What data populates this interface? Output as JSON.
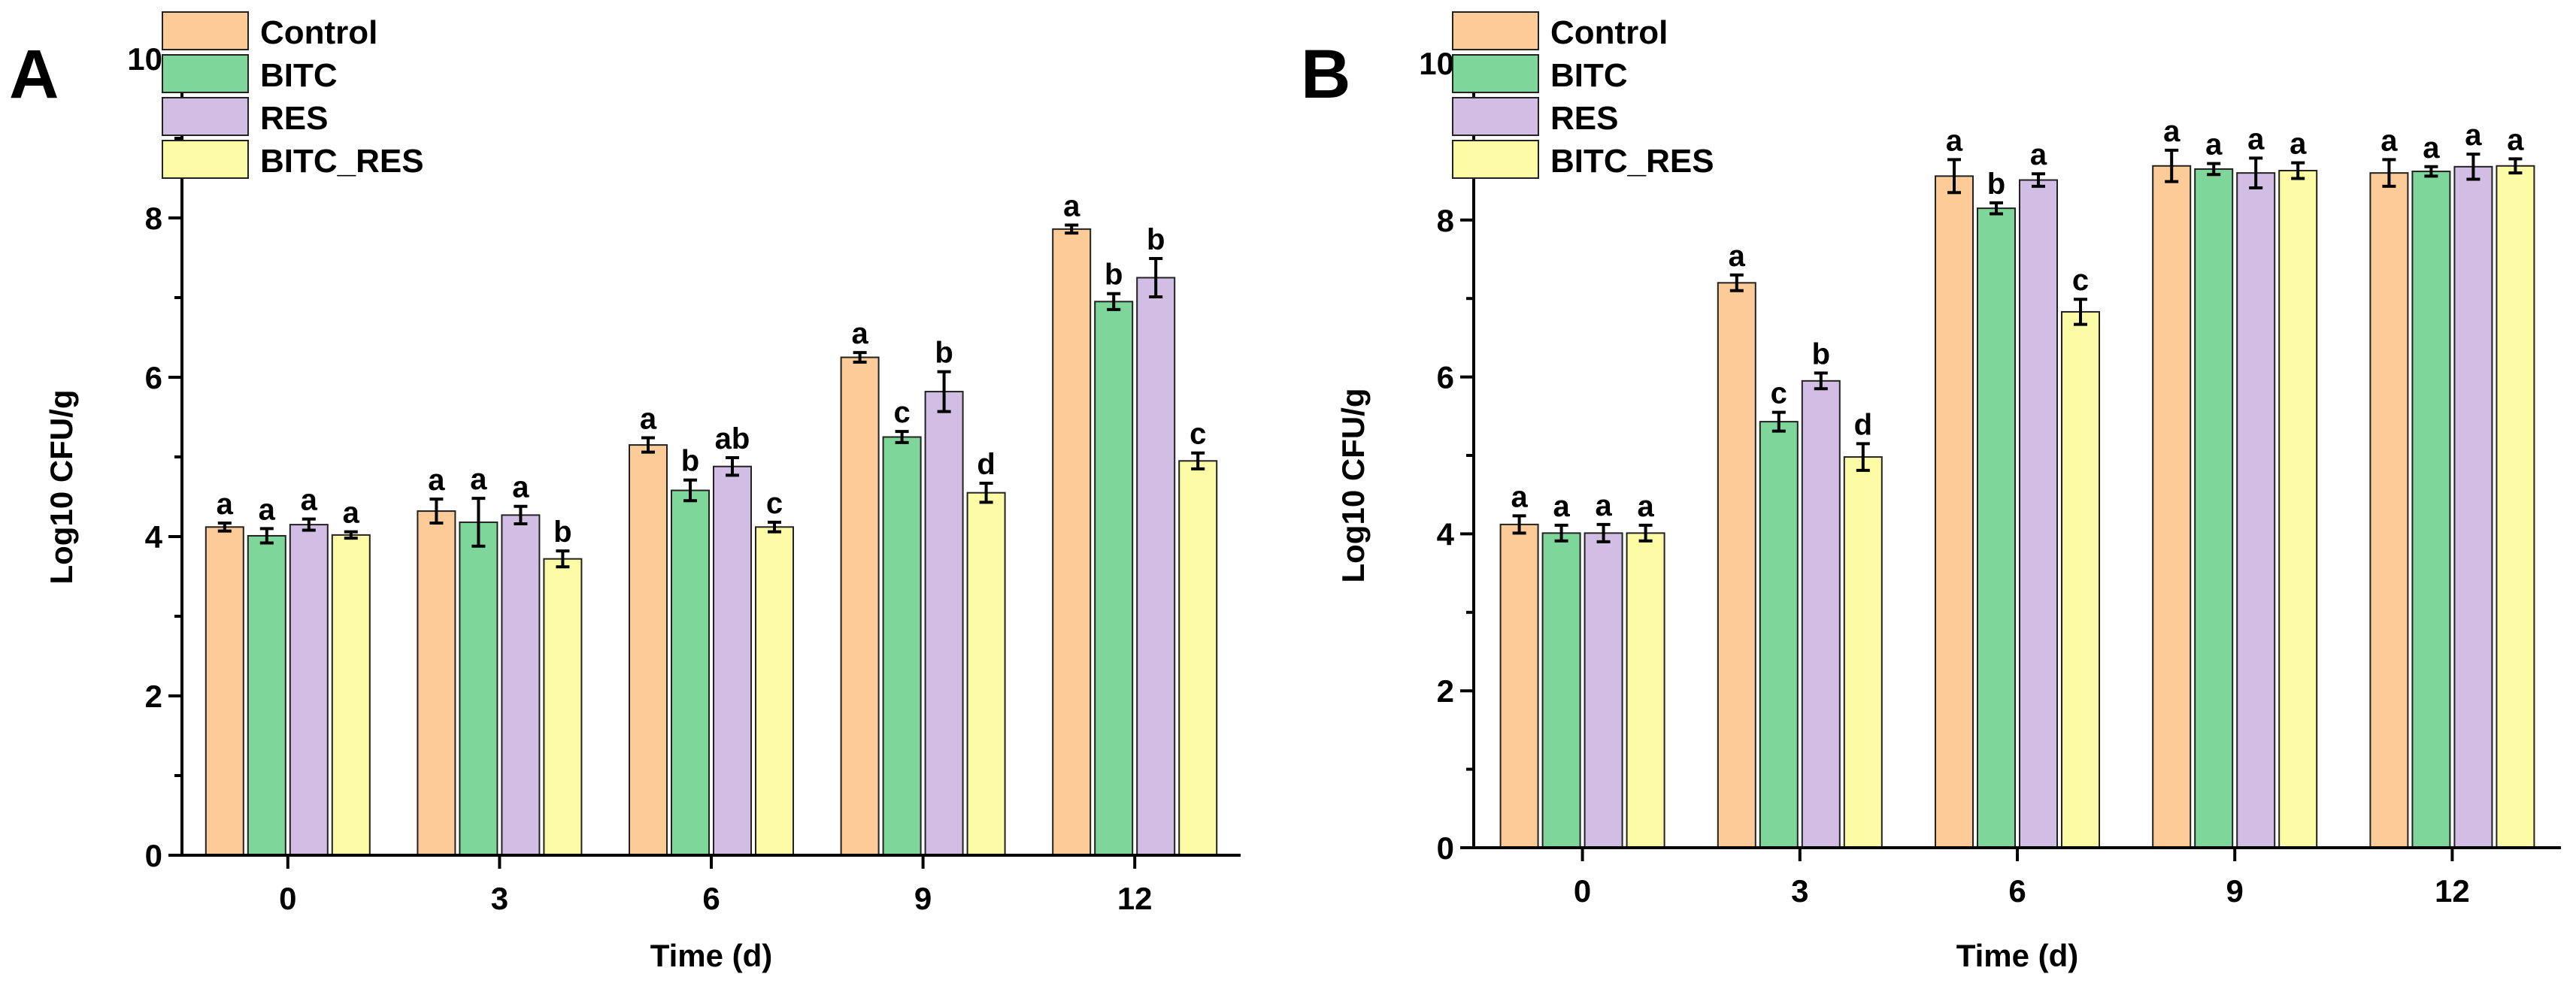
{
  "chart_data": [
    {
      "panel": "A",
      "type": "bar",
      "xlabel": "Time (d)",
      "ylabel": "Log10 CFU/g",
      "ylim": [
        0,
        10
      ],
      "yticks": [
        0,
        2,
        4,
        6,
        8,
        10
      ],
      "categories": [
        "0",
        "3",
        "6",
        "9",
        "12"
      ],
      "legend_position": "top-left",
      "series": [
        {
          "name": "Control",
          "color": "#FCCB98",
          "values": [
            4.12,
            4.32,
            5.15,
            6.25,
            7.86
          ],
          "errors": [
            0.05,
            0.15,
            0.09,
            0.06,
            0.05
          ],
          "labels": [
            "a",
            "a",
            "a",
            "a",
            "a"
          ]
        },
        {
          "name": "BITC",
          "color": "#7ED69A",
          "values": [
            4.01,
            4.18,
            4.58,
            5.25,
            6.95
          ],
          "errors": [
            0.09,
            0.3,
            0.13,
            0.07,
            0.1
          ],
          "labels": [
            "a",
            "a",
            "b",
            "c",
            "b"
          ]
        },
        {
          "name": "RES",
          "color": "#D2BDE4",
          "values": [
            4.15,
            4.27,
            4.88,
            5.82,
            7.25
          ],
          "errors": [
            0.07,
            0.11,
            0.11,
            0.25,
            0.24
          ],
          "labels": [
            "a",
            "a",
            "ab",
            "b",
            "b"
          ]
        },
        {
          "name": "BITC_RES",
          "color": "#FDFCA6",
          "values": [
            4.02,
            3.72,
            4.12,
            4.55,
            4.95
          ],
          "errors": [
            0.04,
            0.1,
            0.06,
            0.12,
            0.1
          ],
          "labels": [
            "a",
            "b",
            "c",
            "d",
            "c"
          ]
        }
      ]
    },
    {
      "panel": "B",
      "type": "bar",
      "xlabel": "Time (d)",
      "ylabel": "Log10 CFU/g",
      "ylim": [
        0,
        10
      ],
      "yticks": [
        0,
        2,
        4,
        6,
        8,
        10
      ],
      "categories": [
        "0",
        "3",
        "6",
        "9",
        "12"
      ],
      "legend_position": "top-left",
      "series": [
        {
          "name": "Control",
          "color": "#FCCB98",
          "values": [
            4.12,
            7.2,
            8.56,
            8.69,
            8.6
          ],
          "errors": [
            0.11,
            0.1,
            0.21,
            0.2,
            0.17
          ],
          "labels": [
            "a",
            "a",
            "a",
            "a",
            "a"
          ]
        },
        {
          "name": "BITC",
          "color": "#7ED69A",
          "values": [
            4.01,
            5.43,
            8.15,
            8.65,
            8.62
          ],
          "errors": [
            0.1,
            0.12,
            0.07,
            0.07,
            0.06
          ],
          "labels": [
            "a",
            "c",
            "b",
            "a",
            "a"
          ]
        },
        {
          "name": "RES",
          "color": "#D2BDE4",
          "values": [
            4.01,
            5.95,
            8.51,
            8.6,
            8.68
          ],
          "errors": [
            0.11,
            0.1,
            0.08,
            0.19,
            0.16
          ],
          "labels": [
            "a",
            "b",
            "a",
            "a",
            "a"
          ]
        },
        {
          "name": "BITC_RES",
          "color": "#FDFCA6",
          "values": [
            4.01,
            4.98,
            6.83,
            8.63,
            8.69
          ],
          "errors": [
            0.1,
            0.17,
            0.16,
            0.1,
            0.09
          ],
          "labels": [
            "a",
            "d",
            "c",
            "a",
            "a"
          ]
        }
      ]
    }
  ]
}
